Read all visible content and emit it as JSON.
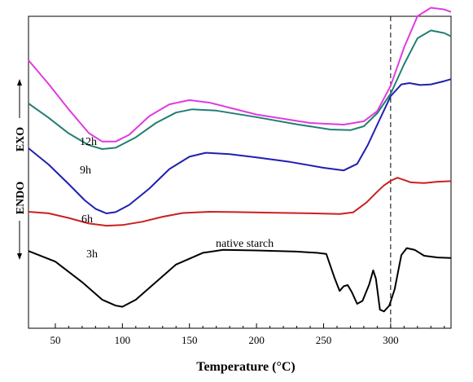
{
  "chart_data": {
    "type": "line",
    "xlabel": "Temperature (°C)",
    "ylabel_top": "EXO",
    "ylabel_bottom": "ENDO",
    "xlim": [
      30,
      345
    ],
    "x_ticks": [
      50,
      100,
      150,
      200,
      250,
      300
    ],
    "y_ticks": false,
    "grid": false,
    "legend": "none",
    "reference_line": {
      "x": 300,
      "style": "dashed"
    },
    "y_units": "arbitrary (vertically offset curves)",
    "series": [
      {
        "name": "native starch",
        "color": "#000000",
        "points": [
          [
            30,
            0.35
          ],
          [
            50,
            0.53
          ],
          [
            70,
            0.88
          ],
          [
            85,
            1.18
          ],
          [
            95,
            1.28
          ],
          [
            100,
            1.3
          ],
          [
            110,
            1.18
          ],
          [
            125,
            0.88
          ],
          [
            140,
            0.58
          ],
          [
            160,
            0.38
          ],
          [
            175,
            0.33
          ],
          [
            200,
            0.34
          ],
          [
            230,
            0.36
          ],
          [
            245,
            0.38
          ],
          [
            252,
            0.4
          ],
          [
            258,
            0.8
          ],
          [
            262,
            1.03
          ],
          [
            265,
            0.95
          ],
          [
            268,
            0.93
          ],
          [
            271,
            1.05
          ],
          [
            275,
            1.25
          ],
          [
            279,
            1.2
          ],
          [
            284,
            0.92
          ],
          [
            287,
            0.68
          ],
          [
            289,
            0.82
          ],
          [
            292,
            1.35
          ],
          [
            295,
            1.38
          ],
          [
            299,
            1.28
          ],
          [
            303,
            1.0
          ],
          [
            308,
            0.42
          ],
          [
            312,
            0.3
          ],
          [
            318,
            0.33
          ],
          [
            325,
            0.43
          ],
          [
            335,
            0.46
          ],
          [
            345,
            0.47
          ]
        ]
      },
      {
        "name": "3h",
        "color": "#cc1f1f",
        "points": [
          [
            30,
            0.0
          ],
          [
            45,
            0.05
          ],
          [
            60,
            0.2
          ],
          [
            75,
            0.38
          ],
          [
            88,
            0.45
          ],
          [
            100,
            0.43
          ],
          [
            115,
            0.32
          ],
          [
            130,
            0.16
          ],
          [
            145,
            0.04
          ],
          [
            165,
            0.0
          ],
          [
            185,
            0.01
          ],
          [
            210,
            0.03
          ],
          [
            240,
            0.05
          ],
          [
            262,
            0.07
          ],
          [
            272,
            0.02
          ],
          [
            282,
            -0.3
          ],
          [
            290,
            -0.65
          ],
          [
            295,
            -0.85
          ],
          [
            300,
            -1.0
          ],
          [
            305,
            -1.1
          ],
          [
            310,
            -1.03
          ],
          [
            315,
            -0.95
          ],
          [
            325,
            -0.93
          ],
          [
            335,
            -0.97
          ],
          [
            345,
            -0.99
          ]
        ]
      },
      {
        "name": "6h",
        "color": "#1f1fb0",
        "points": [
          [
            30,
            0.0
          ],
          [
            45,
            0.25
          ],
          [
            60,
            0.55
          ],
          [
            72,
            0.8
          ],
          [
            80,
            0.93
          ],
          [
            88,
            1.0
          ],
          [
            95,
            0.98
          ],
          [
            105,
            0.87
          ],
          [
            120,
            0.62
          ],
          [
            135,
            0.32
          ],
          [
            150,
            0.13
          ],
          [
            162,
            0.07
          ],
          [
            180,
            0.09
          ],
          [
            200,
            0.14
          ],
          [
            225,
            0.21
          ],
          [
            250,
            0.3
          ],
          [
            265,
            0.34
          ],
          [
            275,
            0.24
          ],
          [
            283,
            -0.05
          ],
          [
            292,
            -0.45
          ],
          [
            300,
            -0.8
          ],
          [
            308,
            -0.98
          ],
          [
            314,
            -1.0
          ],
          [
            322,
            -0.97
          ],
          [
            330,
            -0.98
          ],
          [
            340,
            -1.03
          ],
          [
            345,
            -1.06
          ]
        ]
      },
      {
        "name": "9h",
        "color": "#217f73",
        "points": [
          [
            30,
            0.0
          ],
          [
            45,
            0.22
          ],
          [
            60,
            0.46
          ],
          [
            75,
            0.64
          ],
          [
            85,
            0.7
          ],
          [
            95,
            0.68
          ],
          [
            110,
            0.52
          ],
          [
            125,
            0.3
          ],
          [
            140,
            0.14
          ],
          [
            152,
            0.09
          ],
          [
            170,
            0.11
          ],
          [
            200,
            0.21
          ],
          [
            230,
            0.32
          ],
          [
            255,
            0.4
          ],
          [
            270,
            0.41
          ],
          [
            280,
            0.35
          ],
          [
            290,
            0.15
          ],
          [
            300,
            -0.15
          ],
          [
            310,
            -0.6
          ],
          [
            320,
            -1.0
          ],
          [
            330,
            -1.12
          ],
          [
            340,
            -1.08
          ],
          [
            345,
            -1.03
          ]
        ]
      },
      {
        "name": "12h",
        "color": "#e03be0",
        "points": [
          [
            30,
            0.0
          ],
          [
            45,
            0.28
          ],
          [
            60,
            0.58
          ],
          [
            75,
            0.86
          ],
          [
            85,
            0.96
          ],
          [
            95,
            0.96
          ],
          [
            105,
            0.88
          ],
          [
            120,
            0.66
          ],
          [
            135,
            0.52
          ],
          [
            150,
            0.47
          ],
          [
            165,
            0.5
          ],
          [
            200,
            0.64
          ],
          [
            240,
            0.74
          ],
          [
            265,
            0.76
          ],
          [
            280,
            0.72
          ],
          [
            290,
            0.6
          ],
          [
            300,
            0.3
          ],
          [
            310,
            -0.15
          ],
          [
            320,
            -0.52
          ],
          [
            330,
            -0.62
          ],
          [
            340,
            -0.6
          ],
          [
            345,
            -0.57
          ]
        ]
      }
    ]
  }
}
